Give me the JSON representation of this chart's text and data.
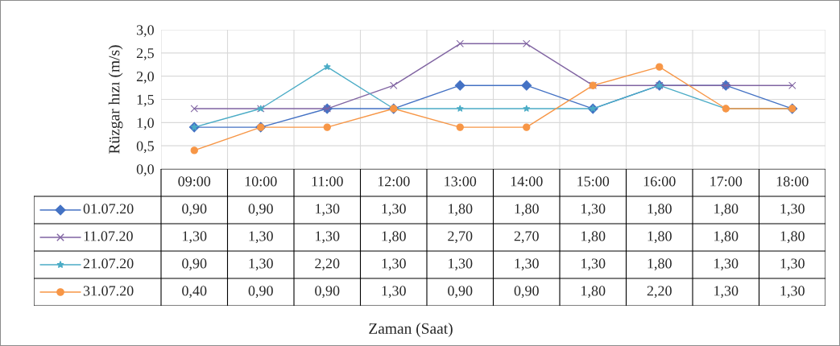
{
  "chart_data": {
    "type": "line",
    "ylabel": "Rüzgar hızı (m/s)",
    "annotations": [
      "Zaman (Saat)"
    ],
    "categories": [
      "09:00",
      "10:00",
      "11:00",
      "12:00",
      "13:00",
      "14:00",
      "15:00",
      "16:00",
      "17:00",
      "18:00"
    ],
    "series": [
      {
        "name": "01.07.20",
        "color": "#4472c4",
        "marker": "diamond",
        "values": [
          0.9,
          0.9,
          1.3,
          1.3,
          1.8,
          1.8,
          1.3,
          1.8,
          1.8,
          1.3
        ],
        "value_labels": [
          "0,90",
          "0,90",
          "1,30",
          "1,30",
          "1,80",
          "1,80",
          "1,30",
          "1,80",
          "1,80",
          "1,30"
        ]
      },
      {
        "name": "11.07.20",
        "color": "#8064a2",
        "marker": "cross",
        "values": [
          1.3,
          1.3,
          1.3,
          1.8,
          2.7,
          2.7,
          1.8,
          1.8,
          1.8,
          1.8
        ],
        "value_labels": [
          "1,30",
          "1,30",
          "1,30",
          "1,80",
          "2,70",
          "2,70",
          "1,80",
          "1,80",
          "1,80",
          "1,80"
        ]
      },
      {
        "name": "21.07.20",
        "color": "#4bacc6",
        "marker": "star",
        "values": [
          0.9,
          1.3,
          2.2,
          1.3,
          1.3,
          1.3,
          1.3,
          1.8,
          1.3,
          1.3
        ],
        "value_labels": [
          "0,90",
          "1,30",
          "2,20",
          "1,30",
          "1,30",
          "1,30",
          "1,30",
          "1,80",
          "1,30",
          "1,30"
        ]
      },
      {
        "name": "31.07.20",
        "color": "#f79646",
        "marker": "circle",
        "values": [
          0.4,
          0.9,
          0.9,
          1.3,
          0.9,
          0.9,
          1.8,
          2.2,
          1.3,
          1.3
        ],
        "value_labels": [
          "0,40",
          "0,90",
          "0,90",
          "1,30",
          "0,90",
          "0,90",
          "1,80",
          "2,20",
          "1,30",
          "1,30"
        ]
      }
    ],
    "ylim": [
      0,
      3
    ],
    "yticks": [
      {
        "value": 0,
        "label": "0,0"
      },
      {
        "value": 0.5,
        "label": "0,5"
      },
      {
        "value": 1,
        "label": "1,0"
      },
      {
        "value": 1.5,
        "label": "1,5"
      },
      {
        "value": 2,
        "label": "2,0"
      },
      {
        "value": 2.5,
        "label": "2,5"
      },
      {
        "value": 3,
        "label": "3,0"
      }
    ],
    "grid": true,
    "legend": "bottom",
    "data_labels": true,
    "line_style": "solid"
  }
}
